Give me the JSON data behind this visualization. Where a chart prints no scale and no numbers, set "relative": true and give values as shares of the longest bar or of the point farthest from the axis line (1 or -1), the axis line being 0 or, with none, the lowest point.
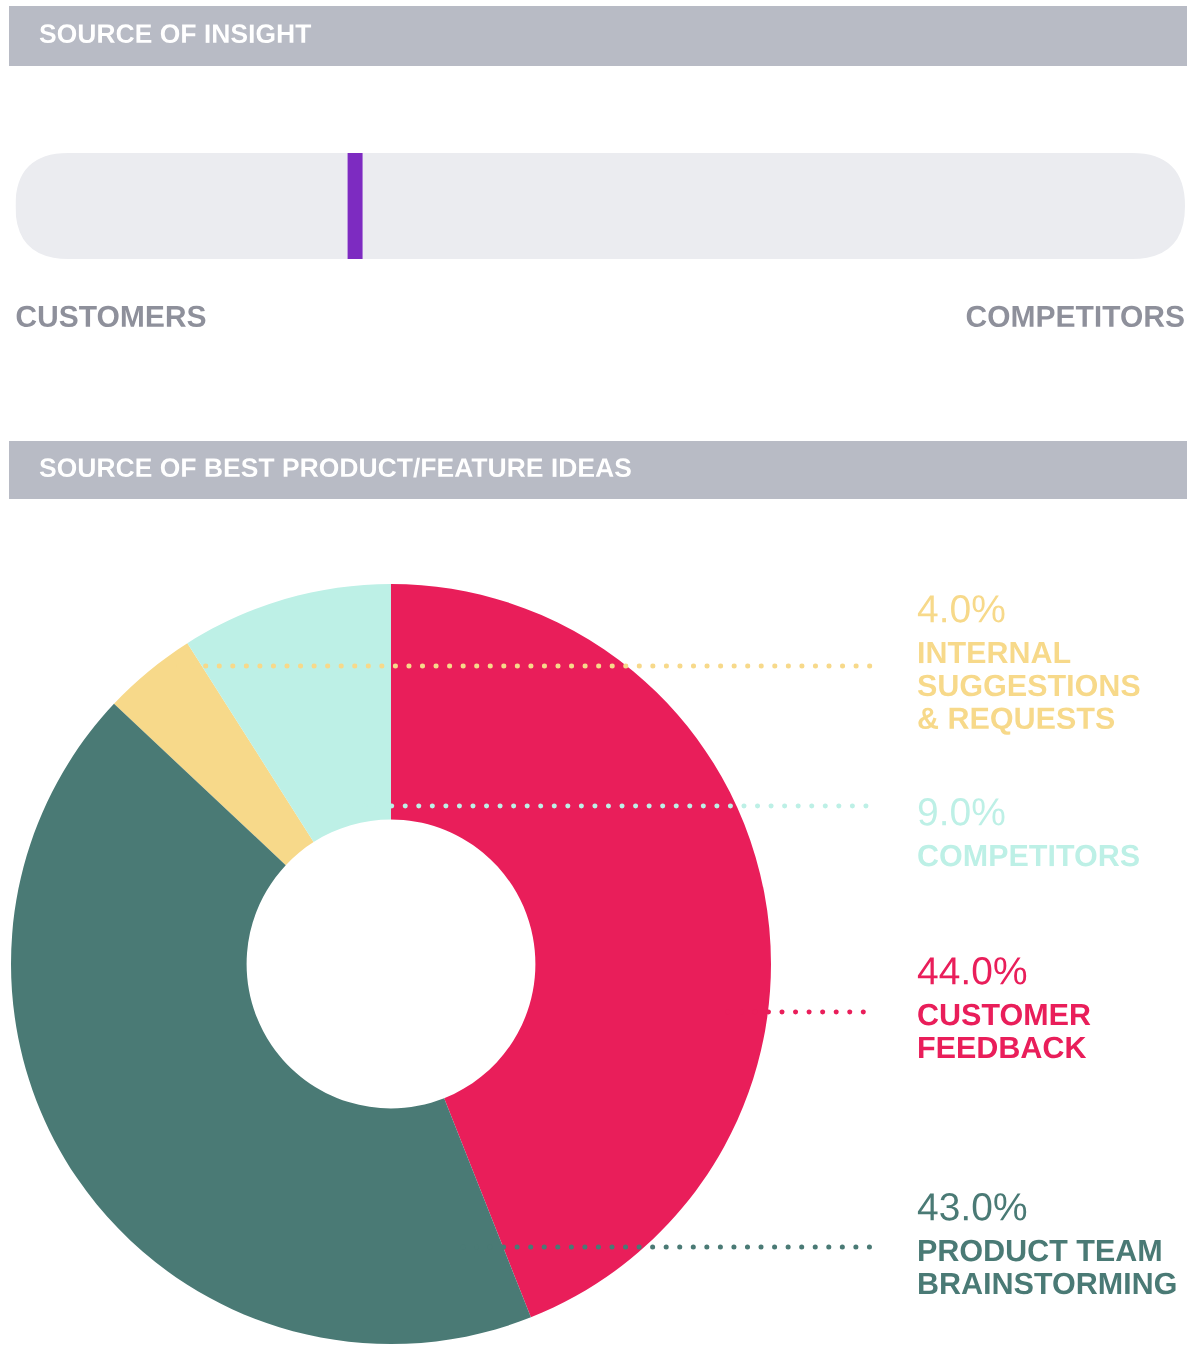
{
  "chart_data": [
    {
      "type": "bar",
      "title": "SOURCE OF INSIGHT",
      "orientation": "horizontal",
      "stacked": true,
      "relative": true,
      "categories": [
        null
      ],
      "series": [
        {
          "color": "#ebecf0",
          "values": [
            0.284
          ]
        },
        {
          "color": "#7d2bc1",
          "values": [
            0.013
          ]
        },
        {
          "color": "#ebecf0",
          "values": [
            0.703
          ]
        }
      ],
      "annotations": [
        "CUSTOMERS",
        "COMPETITORS"
      ]
    },
    {
      "type": "donut",
      "title": "SOURCE OF BEST PRODUCT/FEATURE IDEAS",
      "categories": [
        "INTERNAL\nSUGGESTIONS\n& REQUESTS",
        "COMPETITORS",
        "CUSTOMER\nFEEDBACK",
        "PRODUCT TEAM\nBRAINSTORMING"
      ],
      "values": [
        4,
        9,
        44,
        43
      ],
      "colors": [
        "#f7d98a",
        "#bdf0e6",
        "#e91e5a",
        "#4a7a75"
      ],
      "value_labels": [
        "4.0%",
        "9.0%",
        "44.0%",
        "43.0%"
      ],
      "legend": "right"
    }
  ]
}
